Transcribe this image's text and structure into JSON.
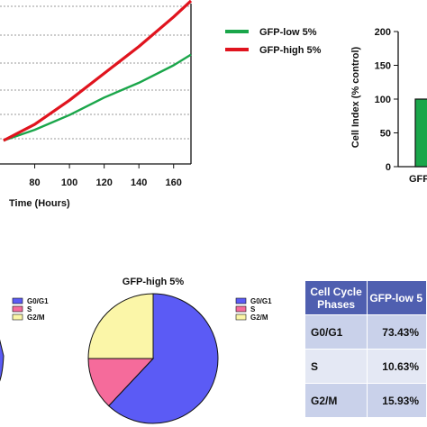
{
  "chart_data": [
    {
      "type": "line",
      "xlabel": "Time (Hours)",
      "x_ticks": [
        "80",
        "100",
        "120",
        "140",
        "160"
      ],
      "xlim": [
        60,
        170
      ],
      "series": [
        {
          "name": "GFP-low 5%",
          "color": "#1aa64a",
          "x": [
            62,
            80,
            100,
            120,
            140,
            160,
            170
          ],
          "y": [
            0.0,
            0.08,
            0.19,
            0.32,
            0.43,
            0.56,
            0.64
          ]
        },
        {
          "name": "GFP-high 5%",
          "color": "#e0141e",
          "x": [
            62,
            80,
            100,
            120,
            140,
            160,
            170
          ],
          "y": [
            0.0,
            0.12,
            0.3,
            0.5,
            0.7,
            0.92,
            1.04
          ]
        }
      ],
      "grid": true,
      "legend": "right"
    },
    {
      "type": "bar",
      "ylabel": "Cell Index (% control)",
      "y_ticks": [
        "0",
        "50",
        "100",
        "150",
        "200"
      ],
      "ylim": [
        0,
        200
      ],
      "categories": [
        "GFP"
      ],
      "values": [
        100
      ],
      "color": "#1aa64a"
    },
    {
      "type": "pie",
      "title": "",
      "categories": [
        "G0/G1",
        "S",
        "G2/M"
      ],
      "legend": [
        "G0/G1",
        "S",
        "G2/M"
      ]
    },
    {
      "type": "pie",
      "title": "GFP-high 5%",
      "categories": [
        "G0/G1",
        "S",
        "G2/M"
      ],
      "values": [
        62,
        13,
        25
      ],
      "colors": [
        "#5b5bf5",
        "#f56b9b",
        "#fbf6a8"
      ],
      "legend": [
        "G0/G1",
        "S",
        "G2/M"
      ]
    },
    {
      "type": "table",
      "columns": [
        "Cell Cycle Phases",
        "GFP-low 5"
      ],
      "rows": [
        [
          "G0/G1",
          "73.43%"
        ],
        [
          "S",
          "10.63%"
        ],
        [
          "G2/M",
          "15.93%"
        ]
      ]
    }
  ]
}
